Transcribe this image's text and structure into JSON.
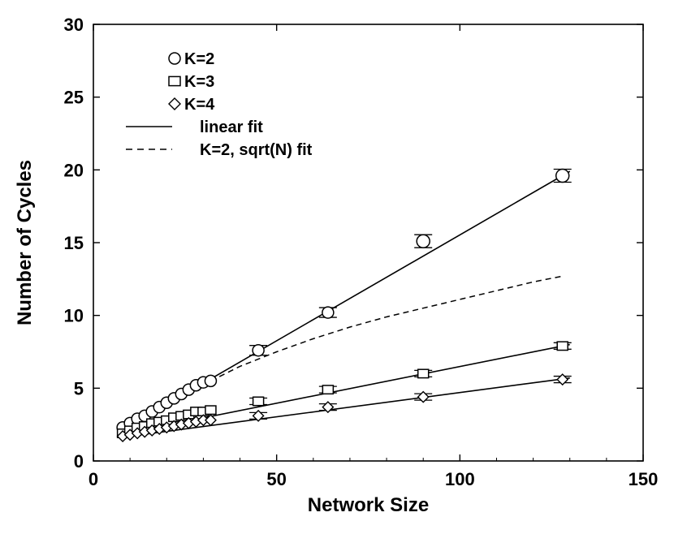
{
  "chart_data": {
    "type": "scatter",
    "xlabel": "Network Size",
    "ylabel": "Number of Cycles",
    "xlim": [
      0,
      150
    ],
    "ylim": [
      0,
      30
    ],
    "xticks": [
      0,
      50,
      100,
      150
    ],
    "yticks": [
      0,
      5,
      10,
      15,
      20,
      25,
      30
    ],
    "grid": false,
    "legend_position": "top-left",
    "series": [
      {
        "name": "K=2",
        "marker": "circle",
        "x": [
          8,
          10,
          12,
          14,
          16,
          18,
          20,
          22,
          24,
          26,
          28,
          30,
          32,
          45,
          64,
          90,
          128
        ],
        "y": [
          2.3,
          2.6,
          2.9,
          3.1,
          3.4,
          3.7,
          4.0,
          4.3,
          4.6,
          4.9,
          5.2,
          5.4,
          5.5,
          7.6,
          10.2,
          15.1,
          19.6
        ],
        "fit": {
          "label": "linear fit",
          "style": "solid",
          "x": [
            7,
            130
          ],
          "y": [
            2.0,
            19.9
          ]
        }
      },
      {
        "name": "K=3",
        "marker": "square",
        "x": [
          8,
          10,
          12,
          14,
          16,
          18,
          20,
          22,
          24,
          26,
          28,
          30,
          32,
          45,
          64,
          90,
          128
        ],
        "y": [
          1.9,
          2.1,
          2.3,
          2.4,
          2.6,
          2.7,
          2.8,
          3.0,
          3.1,
          3.2,
          3.4,
          3.4,
          3.5,
          4.1,
          4.9,
          6.0,
          7.9
        ],
        "fit": {
          "label": "linear fit",
          "style": "solid",
          "x": [
            7,
            130
          ],
          "y": [
            1.8,
            8.0
          ]
        }
      },
      {
        "name": "K=4",
        "marker": "diamond",
        "x": [
          8,
          10,
          12,
          14,
          16,
          18,
          20,
          22,
          24,
          26,
          28,
          30,
          32,
          45,
          64,
          90,
          128
        ],
        "y": [
          1.7,
          1.8,
          1.9,
          2.0,
          2.1,
          2.2,
          2.3,
          2.4,
          2.5,
          2.6,
          2.7,
          2.8,
          2.8,
          3.1,
          3.7,
          4.4,
          5.6
        ],
        "fit": {
          "label": "linear fit",
          "style": "solid",
          "x": [
            7,
            130
          ],
          "y": [
            1.6,
            5.7
          ]
        }
      }
    ],
    "extra_lines": [
      {
        "name": "K=2, sqrt(N) fit",
        "style": "dashed",
        "x": [
          32,
          40,
          50,
          60,
          70,
          80,
          90,
          100,
          110,
          120,
          128
        ],
        "y": [
          5.5,
          6.5,
          7.5,
          8.4,
          9.2,
          9.9,
          10.5,
          11.1,
          11.7,
          12.3,
          12.7
        ]
      }
    ],
    "legend": [
      {
        "label": "K=2",
        "symbol": "circle"
      },
      {
        "label": "K=3",
        "symbol": "square"
      },
      {
        "label": "K=4",
        "symbol": "diamond"
      },
      {
        "label": "linear fit",
        "symbol": "solid-line"
      },
      {
        "label": "K=2, sqrt(N) fit",
        "symbol": "dashed-line"
      }
    ]
  }
}
